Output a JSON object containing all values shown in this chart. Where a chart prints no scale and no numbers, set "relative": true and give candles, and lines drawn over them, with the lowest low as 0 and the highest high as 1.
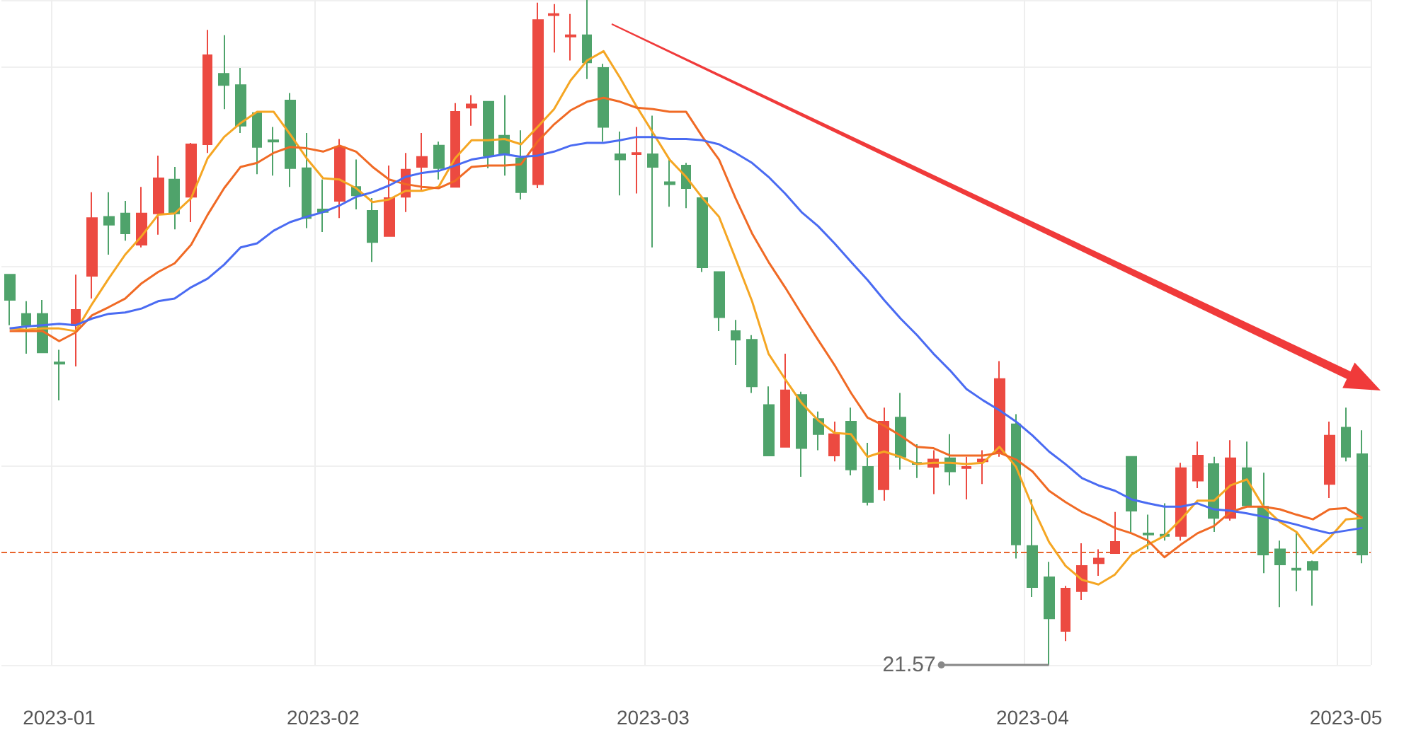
{
  "chart_data": {
    "type": "candlestick",
    "relative": true,
    "grid": true,
    "categories": [
      null,
      null,
      null,
      "2023-01",
      null,
      null,
      null,
      null,
      null,
      null,
      null,
      null,
      null,
      null,
      null,
      null,
      null,
      null,
      null,
      "2023-02",
      null,
      null,
      null,
      null,
      null,
      null,
      null,
      null,
      null,
      null,
      null,
      null,
      null,
      null,
      null,
      null,
      null,
      null,
      null,
      "2023-03",
      null,
      null,
      null,
      null,
      null,
      null,
      null,
      null,
      null,
      null,
      null,
      null,
      null,
      null,
      null,
      null,
      null,
      null,
      null,
      null,
      null,
      null,
      "2023-04",
      null,
      null,
      null,
      null,
      null,
      null,
      null,
      null,
      null,
      null,
      null,
      null,
      null,
      null,
      null,
      null,
      null,
      null,
      "2023-05",
      null
    ],
    "ohlc": [
      [
        0.587,
        0.587,
        0.511,
        0.549
      ],
      [
        0.528,
        0.547,
        0.468,
        0.511
      ],
      [
        0.528,
        0.549,
        0.47,
        0.47
      ],
      [
        0.455,
        0.474,
        0.398,
        0.453
      ],
      [
        0.511,
        0.587,
        0.449,
        0.534
      ],
      [
        0.585,
        0.711,
        0.551,
        0.672
      ],
      [
        0.674,
        0.711,
        0.617,
        0.662
      ],
      [
        0.679,
        0.698,
        0.638,
        0.649
      ],
      [
        0.632,
        0.719,
        0.628,
        0.679
      ],
      [
        0.679,
        0.766,
        0.647,
        0.732
      ],
      [
        0.73,
        0.749,
        0.655,
        0.679
      ],
      [
        0.704,
        0.785,
        0.666,
        0.783
      ],
      [
        0.783,
        0.955,
        0.77,
        0.917
      ],
      [
        0.889,
        0.947,
        0.836,
        0.872
      ],
      [
        0.872,
        0.898,
        0.8,
        0.811
      ],
      [
        0.83,
        0.832,
        0.738,
        0.779
      ],
      [
        0.789,
        0.809,
        0.736,
        0.787
      ],
      [
        0.849,
        0.86,
        0.719,
        0.747
      ],
      [
        0.747,
        0.8,
        0.657,
        0.672
      ],
      [
        0.685,
        0.73,
        0.651,
        0.681
      ],
      [
        0.698,
        0.791,
        0.672,
        0.779
      ],
      [
        0.719,
        0.76,
        0.685,
        0.706
      ],
      [
        0.683,
        0.702,
        0.606,
        0.636
      ],
      [
        0.645,
        0.751,
        0.645,
        0.702
      ],
      [
        0.704,
        0.77,
        0.681,
        0.745
      ],
      [
        0.749,
        0.8,
        0.713,
        0.764
      ],
      [
        0.781,
        0.787,
        0.73,
        0.747
      ],
      [
        0.719,
        0.845,
        0.719,
        0.832
      ],
      [
        0.838,
        0.857,
        0.811,
        0.843
      ],
      [
        0.847,
        0.847,
        0.747,
        0.766
      ],
      [
        0.796,
        0.857,
        0.736,
        0.768
      ],
      [
        0.762,
        0.804,
        0.7,
        0.711
      ],
      [
        0.723,
        0.996,
        0.717,
        0.97
      ],
      [
        0.977,
        0.994,
        0.921,
        0.979
      ],
      [
        0.945,
        0.979,
        0.909,
        0.947
      ],
      [
        0.947,
        1,
        0.881,
        0.906
      ],
      [
        0.898,
        0.904,
        0.787,
        0.809
      ],
      [
        0.768,
        0.802,
        0.706,
        0.76
      ],
      [
        0.768,
        0.809,
        0.709,
        0.77
      ],
      [
        0.768,
        0.826,
        0.628,
        0.749
      ],
      [
        0.726,
        0.76,
        0.689,
        0.723
      ],
      [
        0.751,
        0.755,
        0.687,
        0.717
      ],
      [
        0.702,
        0.702,
        0.591,
        0.598
      ],
      [
        0.591,
        0.591,
        0.502,
        0.523
      ],
      [
        0.502,
        0.519,
        0.451,
        0.489
      ],
      [
        0.489,
        0.496,
        0.409,
        0.419
      ],
      [
        0.391,
        0.419,
        0.315,
        0.315
      ],
      [
        0.328,
        0.468,
        0.328,
        0.413
      ],
      [
        0.406,
        0.411,
        0.283,
        0.326
      ],
      [
        0.37,
        0.381,
        0.323,
        0.347
      ],
      [
        0.315,
        0.366,
        0.306,
        0.347
      ],
      [
        0.366,
        0.387,
        0.285,
        0.294
      ],
      [
        0.298,
        0.334,
        0.24,
        0.245
      ],
      [
        0.264,
        0.387,
        0.247,
        0.366
      ],
      [
        0.372,
        0.409,
        0.294,
        0.313
      ],
      [
        0.304,
        0.332,
        0.281,
        0.302
      ],
      [
        0.298,
        0.323,
        0.257,
        0.309
      ],
      [
        0.311,
        0.347,
        0.27,
        0.291
      ],
      [
        0.296,
        0.313,
        0.249,
        0.298
      ],
      [
        0.306,
        0.323,
        0.272,
        0.309
      ],
      [
        0.319,
        0.457,
        0.313,
        0.43
      ],
      [
        0.362,
        0.377,
        0.16,
        0.181
      ],
      [
        0.179,
        0.249,
        0.102,
        0.117
      ],
      [
        0.132,
        0.155,
        0,
        0.07
      ],
      [
        0.051,
        0.119,
        0.036,
        0.115
      ],
      [
        0.111,
        0.183,
        0.098,
        0.149
      ],
      [
        0.153,
        0.174,
        0.134,
        0.16
      ],
      [
        0.168,
        0.23,
        0.168,
        0.185
      ],
      [
        0.313,
        0.313,
        0.198,
        0.232
      ],
      [
        0.198,
        0.226,
        0.174,
        0.196
      ],
      [
        0.196,
        0.243,
        0.187,
        0.194
      ],
      [
        0.194,
        0.304,
        0.187,
        0.296
      ],
      [
        0.277,
        0.336,
        0.266,
        0.315
      ],
      [
        0.302,
        0.313,
        0.2,
        0.221
      ],
      [
        0.221,
        0.338,
        0.217,
        0.311
      ],
      [
        0.296,
        0.336,
        0.238,
        0.24
      ],
      [
        0.238,
        0.289,
        0.138,
        0.166
      ],
      [
        0.174,
        0.187,
        0.087,
        0.151
      ],
      [
        0.145,
        0.2,
        0.111,
        0.143
      ],
      [
        0.155,
        0.157,
        0.089,
        0.143
      ],
      [
        0.272,
        0.366,
        0.251,
        0.345
      ],
      [
        0.357,
        0.387,
        0.306,
        0.313
      ],
      [
        0.317,
        0.353,
        0.153,
        0.166
      ]
    ],
    "colors": [
      "#4fa36b",
      "#4fa36b",
      "#4fa36b",
      "#4fa36b",
      "#ec4a41",
      "#ec4a41",
      "#4fa36b",
      "#4fa36b",
      "#ec4a41",
      "#ec4a41",
      "#4fa36b",
      "#ec4a41",
      "#ec4a41",
      "#4fa36b",
      "#4fa36b",
      "#4fa36b",
      "#4fa36b",
      "#4fa36b",
      "#4fa36b",
      "#4fa36b",
      "#ec4a41",
      "#4fa36b",
      "#4fa36b",
      "#ec4a41",
      "#ec4a41",
      "#ec4a41",
      "#4fa36b",
      "#ec4a41",
      "#ec4a41",
      "#4fa36b",
      "#4fa36b",
      "#4fa36b",
      "#ec4a41",
      "#ec4a41",
      "#ec4a41",
      "#4fa36b",
      "#4fa36b",
      "#4fa36b",
      "#ec4a41",
      "#4fa36b",
      "#4fa36b",
      "#4fa36b",
      "#4fa36b",
      "#4fa36b",
      "#4fa36b",
      "#4fa36b",
      "#4fa36b",
      "#ec4a41",
      "#4fa36b",
      "#4fa36b",
      "#ec4a41",
      "#4fa36b",
      "#4fa36b",
      "#ec4a41",
      "#4fa36b",
      "#4fa36b",
      "#ec4a41",
      "#4fa36b",
      "#ec4a41",
      "#ec4a41",
      "#ec4a41",
      "#4fa36b",
      "#4fa36b",
      "#4fa36b",
      "#ec4a41",
      "#ec4a41",
      "#ec4a41",
      "#ec4a41",
      "#4fa36b",
      "#4fa36b",
      "#4fa36b",
      "#ec4a41",
      "#ec4a41",
      "#4fa36b",
      "#ec4a41",
      "#4fa36b",
      "#4fa36b",
      "#4fa36b",
      "#4fa36b",
      "#4fa36b",
      "#ec4a41",
      "#4fa36b",
      "#4fa36b"
    ],
    "series": [
      {
        "type": "line",
        "color": "#f5a623",
        "values": [
          0.506,
          0.504,
          0.506,
          0.506,
          0.502,
          0.543,
          0.581,
          0.617,
          0.645,
          0.677,
          0.679,
          0.702,
          0.762,
          0.794,
          0.815,
          0.832,
          0.832,
          0.798,
          0.762,
          0.732,
          0.73,
          0.717,
          0.696,
          0.7,
          0.713,
          0.713,
          0.719,
          0.762,
          0.789,
          0.789,
          0.791,
          0.783,
          0.809,
          0.836,
          0.879,
          0.909,
          0.923,
          0.883,
          0.84,
          0.8,
          0.76,
          0.734,
          0.702,
          0.674,
          0.611,
          0.547,
          0.468,
          0.43,
          0.394,
          0.368,
          0.349,
          0.347,
          0.313,
          0.321,
          0.313,
          0.302,
          0.304,
          0.304,
          0.302,
          0.304,
          0.328,
          0.298,
          0.238,
          0.185,
          0.149,
          0.128,
          0.121,
          0.136,
          0.166,
          0.181,
          0.194,
          0.219,
          0.247,
          0.247,
          0.27,
          0.279,
          0.238,
          0.215,
          0.2,
          0.168,
          0.191,
          0.219,
          0.221
        ]
      },
      {
        "type": "line",
        "color": "#f06a25",
        "values": [
          0.502,
          0.502,
          0.502,
          0.487,
          0.5,
          0.526,
          0.538,
          0.551,
          0.574,
          0.591,
          0.604,
          0.632,
          0.677,
          0.717,
          0.749,
          0.755,
          0.77,
          0.779,
          0.777,
          0.772,
          0.781,
          0.772,
          0.749,
          0.73,
          0.723,
          0.719,
          0.717,
          0.728,
          0.749,
          0.751,
          0.751,
          0.753,
          0.787,
          0.813,
          0.834,
          0.847,
          0.853,
          0.847,
          0.838,
          0.836,
          0.832,
          0.832,
          0.794,
          0.76,
          0.702,
          0.649,
          0.606,
          0.568,
          0.528,
          0.489,
          0.451,
          0.409,
          0.372,
          0.36,
          0.345,
          0.328,
          0.326,
          0.315,
          0.315,
          0.315,
          0.319,
          0.309,
          0.291,
          0.262,
          0.245,
          0.23,
          0.219,
          0.206,
          0.198,
          0.187,
          0.162,
          0.181,
          0.198,
          0.209,
          0.23,
          0.238,
          0.238,
          0.234,
          0.226,
          0.219,
          0.234,
          0.236,
          0.221
        ]
      },
      {
        "type": "line",
        "color": "#4a6bf2",
        "values": [
          0.506,
          0.509,
          0.511,
          0.513,
          0.511,
          0.521,
          0.528,
          0.53,
          0.536,
          0.547,
          0.551,
          0.568,
          0.581,
          0.602,
          0.628,
          0.634,
          0.653,
          0.666,
          0.674,
          0.681,
          0.691,
          0.704,
          0.711,
          0.721,
          0.734,
          0.74,
          0.743,
          0.751,
          0.76,
          0.764,
          0.768,
          0.764,
          0.766,
          0.772,
          0.781,
          0.785,
          0.785,
          0.789,
          0.794,
          0.794,
          0.791,
          0.791,
          0.789,
          0.783,
          0.77,
          0.755,
          0.734,
          0.709,
          0.681,
          0.66,
          0.634,
          0.606,
          0.579,
          0.549,
          0.521,
          0.496,
          0.468,
          0.443,
          0.415,
          0.398,
          0.383,
          0.366,
          0.345,
          0.321,
          0.302,
          0.281,
          0.27,
          0.262,
          0.249,
          0.243,
          0.238,
          0.238,
          0.243,
          0.234,
          0.232,
          0.228,
          0.223,
          0.217,
          0.211,
          0.204,
          0.198,
          0.202,
          0.206
        ]
      }
    ],
    "ref_lines": [
      {
        "axis": "y",
        "value": 0.166,
        "color": "#e8642c",
        "line_style": "dashed"
      }
    ],
    "annotations": [
      "21.57"
    ]
  }
}
